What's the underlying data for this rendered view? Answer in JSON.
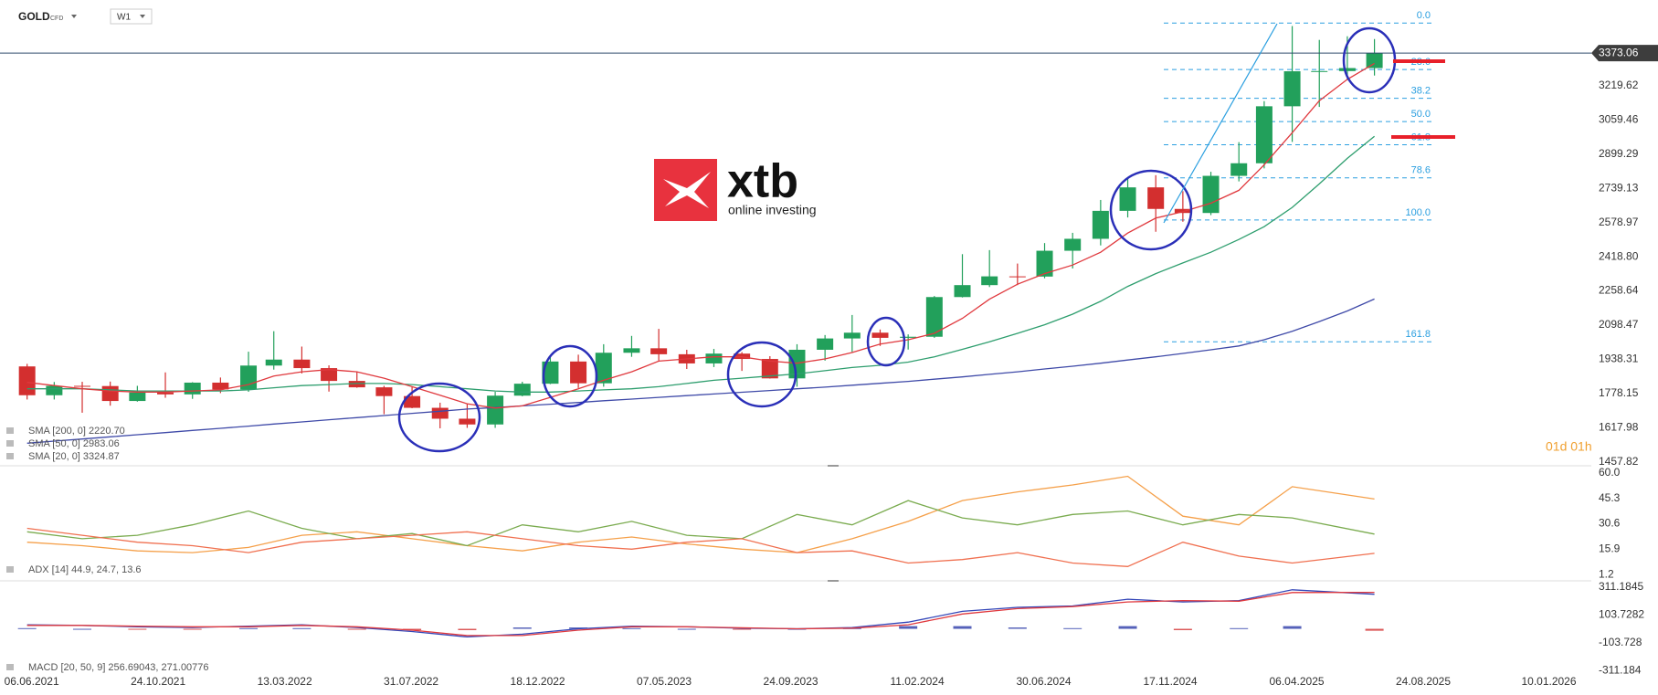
{
  "header": {
    "symbol": "GOLD",
    "market": "CFD",
    "interval": "W1"
  },
  "logo": {
    "brand": "xtb",
    "tagline": "online investing"
  },
  "countdown": "01d 01h",
  "chart_data": [
    {
      "type": "candlestick",
      "xlim": [
        "02.05.2021",
        "26.02.2026"
      ],
      "ylim": [
        1448,
        3622
      ],
      "yticks": [
        1457.82,
        1617.98,
        1778.15,
        1938.31,
        2098.47,
        2258.64,
        {
          "value": 2418.8,
          "label": "2418.80"
        },
        2578.97,
        2739.13,
        2899.29,
        3059.46,
        3219.62
      ],
      "last_price": 3373.06,
      "up_color": "#22a05b",
      "down_color": "#d32f2f",
      "x": [
        "01.06.2021",
        "01.07.2021",
        "01.08.2021",
        "01.09.2021",
        "01.10.2021",
        "01.11.2021",
        "01.12.2021",
        "01.01.2022",
        "01.02.2022",
        "01.03.2022",
        "01.04.2022",
        "01.05.2022",
        "01.06.2022",
        "01.07.2022",
        "01.08.2022",
        "01.09.2022",
        "01.10.2022",
        "01.11.2022",
        "01.12.2022",
        "01.01.2023",
        "01.02.2023",
        "01.03.2023",
        "01.04.2023",
        "01.05.2023",
        "01.06.2023",
        "01.07.2023",
        "01.08.2023",
        "01.09.2023",
        "01.10.2023",
        "01.11.2023",
        "01.12.2023",
        "01.01.2024",
        "01.02.2024",
        "01.03.2024",
        "01.04.2024",
        "01.05.2024",
        "01.06.2024",
        "01.07.2024",
        "01.08.2024",
        "01.09.2024",
        "01.10.2024",
        "01.11.2024",
        "01.12.2024",
        "01.01.2025",
        "01.02.2025",
        "01.03.2025",
        "01.04.2025",
        "01.05.2025",
        "01.06.2025",
        "01.07.2025"
      ],
      "open": [
        1905,
        1770,
        1814,
        1813,
        1743,
        1783,
        1774,
        1829,
        1797,
        1909,
        1937,
        1897,
        1837,
        1807,
        1766,
        1711,
        1660,
        1633,
        1768,
        1824,
        1928,
        1826,
        1969,
        1990,
        1962,
        1919,
        1965,
        1940,
        1849,
        1983,
        2036,
        2063,
        2039,
        2044,
        2230,
        2286,
        2327,
        2326,
        2447,
        2503,
        2634,
        2744,
        2643,
        2624,
        2798,
        2857,
        3124,
        3288,
        3289,
        3303
      ],
      "high": [
        1917,
        1832,
        1833,
        1834,
        1814,
        1877,
        1831,
        1853,
        1974,
        2070,
        1998,
        1910,
        1879,
        1814,
        1808,
        1735,
        1730,
        1786,
        1833,
        1949,
        1960,
        2009,
        2048,
        2081,
        1983,
        1987,
        1972,
        1953,
        2009,
        2052,
        2146,
        2078,
        2055,
        2235,
        2431,
        2450,
        2387,
        2483,
        2531,
        2685,
        2790,
        2801,
        2726,
        2817,
        2956,
        3148,
        3500,
        3435,
        3452,
        3439
      ],
      "low": [
        1750,
        1750,
        1688,
        1721,
        1740,
        1758,
        1753,
        1780,
        1786,
        1890,
        1872,
        1787,
        1805,
        1681,
        1709,
        1615,
        1617,
        1617,
        1765,
        1822,
        1804,
        1810,
        1950,
        1932,
        1893,
        1902,
        1884,
        1848,
        1810,
        1932,
        1973,
        2001,
        1984,
        2039,
        2228,
        2277,
        2286,
        2318,
        2364,
        2472,
        2603,
        2536,
        2583,
        2614,
        2772,
        2833,
        2957,
        3121,
        3247,
        3268
      ],
      "close": [
        1770,
        1814,
        1813,
        1743,
        1783,
        1774,
        1829,
        1797,
        1909,
        1937,
        1897,
        1837,
        1807,
        1766,
        1711,
        1660,
        1633,
        1768,
        1824,
        1928,
        1826,
        1969,
        1990,
        1962,
        1919,
        1965,
        1940,
        1849,
        1983,
        2036,
        2063,
        2039,
        2044,
        2230,
        2286,
        2327,
        2326,
        2447,
        2503,
        2634,
        2744,
        2643,
        2624,
        2798,
        2857,
        3124,
        3288,
        3289,
        3303,
        3373.06
      ],
      "series": [
        {
          "name": "SMA [200, 0] 2220.70",
          "color": "#3f4aa8",
          "values": [
            1545,
            1555,
            1565,
            1575,
            1585,
            1595,
            1605,
            1615,
            1625,
            1635,
            1645,
            1655,
            1665,
            1675,
            1685,
            1695,
            1705,
            1712,
            1720,
            1728,
            1736,
            1744,
            1752,
            1760,
            1768,
            1776,
            1784,
            1792,
            1800,
            1808,
            1817,
            1826,
            1835,
            1845,
            1856,
            1868,
            1880,
            1893,
            1906,
            1920,
            1935,
            1950,
            1966,
            1983,
            2001,
            2030,
            2070,
            2115,
            2165,
            2220.7
          ]
        },
        {
          "name": "SMA [50, 0] 2983.06",
          "color": "#2e9e6e",
          "values": [
            1800,
            1800,
            1800,
            1795,
            1790,
            1790,
            1790,
            1790,
            1795,
            1805,
            1815,
            1820,
            1825,
            1825,
            1820,
            1810,
            1800,
            1790,
            1785,
            1785,
            1790,
            1795,
            1800,
            1810,
            1825,
            1840,
            1850,
            1860,
            1870,
            1885,
            1900,
            1910,
            1925,
            1950,
            1985,
            2020,
            2060,
            2100,
            2150,
            2210,
            2280,
            2340,
            2390,
            2440,
            2500,
            2560,
            2650,
            2760,
            2880,
            2983.06
          ]
        },
        {
          "name": "SMA [20, 0] 3324.87",
          "color": "#e0393e",
          "values": [
            1830,
            1815,
            1800,
            1790,
            1785,
            1785,
            1790,
            1795,
            1820,
            1860,
            1880,
            1890,
            1880,
            1850,
            1810,
            1770,
            1730,
            1710,
            1720,
            1760,
            1800,
            1840,
            1880,
            1930,
            1940,
            1950,
            1950,
            1930,
            1920,
            1940,
            1970,
            2010,
            2030,
            2060,
            2130,
            2220,
            2290,
            2340,
            2380,
            2440,
            2530,
            2600,
            2630,
            2670,
            2730,
            2850,
            3000,
            3150,
            3250,
            3324.87
          ]
        }
      ],
      "fibonacci": {
        "high": 3514,
        "low": 2591,
        "color": "#2b9fe0",
        "levels": [
          {
            "value": 0,
            "label": "0.0"
          },
          23.6,
          38.2,
          {
            "value": 50,
            "label": "50.0"
          },
          61.8,
          78.6,
          {
            "value": 100,
            "label": "100.0"
          },
          161.8
        ]
      }
    },
    {
      "type": "line",
      "label": "ADX [14] 44.9, 24.7, 13.6",
      "xlim": [
        "02.05.2021",
        "26.02.2026"
      ],
      "ylim": [
        -1.2,
        63
      ],
      "yticks": [
        {
          "value": 60,
          "label": "60.0"
        },
        45.3,
        30.6,
        15.9,
        1.2
      ],
      "x": [
        "01.06.2021",
        "01.08.2021",
        "01.10.2021",
        "01.12.2021",
        "01.02.2022",
        "01.04.2022",
        "01.06.2022",
        "01.08.2022",
        "01.10.2022",
        "01.12.2022",
        "01.02.2023",
        "01.04.2023",
        "01.06.2023",
        "01.08.2023",
        "01.10.2023",
        "01.12.2023",
        "01.02.2024",
        "01.04.2024",
        "01.06.2024",
        "01.08.2024",
        "01.10.2024",
        "01.12.2024",
        "01.02.2025",
        "01.04.2025",
        "01.07.2025"
      ],
      "series": [
        {
          "color": "#f5a04a",
          "values": [
            20,
            18,
            15,
            14,
            17,
            24,
            26,
            22,
            18,
            15,
            20,
            23,
            19,
            16,
            14,
            22,
            32,
            44,
            49,
            53,
            58,
            35,
            30,
            52,
            44.9
          ]
        },
        {
          "color": "#7aab4f",
          "values": [
            26,
            22,
            24,
            30,
            38,
            28,
            22,
            25,
            18,
            30,
            26,
            32,
            24,
            22,
            36,
            30,
            44,
            34,
            30,
            36,
            38,
            30,
            36,
            34,
            24.7
          ]
        },
        {
          "color": "#f07050",
          "values": [
            28,
            24,
            20,
            18,
            14,
            20,
            22,
            24,
            26,
            22,
            18,
            16,
            20,
            22,
            14,
            15,
            8,
            10,
            14,
            8,
            6,
            20,
            12,
            8,
            13.6
          ]
        }
      ]
    },
    {
      "type": "line",
      "label": "MACD [20, 50, 9] 256.69043, 271.00776",
      "xlim": [
        "02.05.2021",
        "26.02.2026"
      ],
      "ylim": [
        -370,
        350
      ],
      "yticks": [
        311.1845,
        103.7282,
        -103.728,
        -311.184
      ],
      "xticks": [
        "06.06.2021",
        "24.10.2021",
        "13.03.2022",
        "31.07.2022",
        "18.12.2022",
        "07.05.2023",
        "24.09.2023",
        "11.02.2024",
        "30.06.2024",
        "17.11.2024",
        "06.04.2025",
        "24.08.2025",
        "10.01.2026"
      ],
      "x": [
        "01.06.2021",
        "01.08.2021",
        "01.10.2021",
        "01.12.2021",
        "01.02.2022",
        "01.04.2022",
        "01.06.2022",
        "01.08.2022",
        "01.10.2022",
        "01.12.2022",
        "01.02.2023",
        "01.04.2023",
        "01.06.2023",
        "01.08.2023",
        "01.10.2023",
        "01.12.2023",
        "01.02.2024",
        "01.04.2024",
        "01.06.2024",
        "01.08.2024",
        "01.10.2024",
        "01.12.2024",
        "01.02.2025",
        "01.04.2025",
        "01.07.2025"
      ],
      "series": [
        {
          "color": "#3346b8",
          "values": [
            30,
            25,
            15,
            10,
            20,
            30,
            10,
            -20,
            -60,
            -40,
            0,
            20,
            15,
            5,
            0,
            10,
            50,
            130,
            160,
            170,
            220,
            200,
            210,
            290,
            256.69043
          ]
        },
        {
          "color": "#e0393e",
          "values": [
            25,
            25,
            20,
            15,
            15,
            25,
            15,
            -10,
            -50,
            -50,
            -10,
            15,
            15,
            8,
            0,
            5,
            30,
            110,
            150,
            165,
            200,
            210,
            205,
            270,
            271.00776
          ]
        }
      ],
      "histogram": {
        "up_color": "#2a3aa8",
        "down_color": "#d32f2f",
        "values": [
          5,
          0,
          -5,
          -5,
          5,
          5,
          -5,
          -10,
          -10,
          10,
          10,
          5,
          0,
          -3,
          0,
          5,
          20,
          20,
          10,
          5,
          20,
          -10,
          5,
          20,
          -14.3
        ]
      }
    }
  ]
}
